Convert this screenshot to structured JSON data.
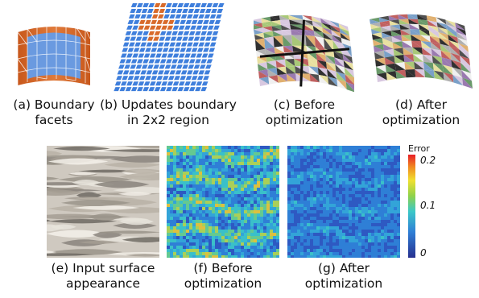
{
  "panels": {
    "a": {
      "line1": "(a) Boundary",
      "line2": "facets"
    },
    "b": {
      "line1": "(b) Updates boundary",
      "line2": "in 2x2 region"
    },
    "c": {
      "line1": "(c) Before",
      "line2": "optimization"
    },
    "d": {
      "line1": "(d) After",
      "line2": "optimization"
    },
    "e": {
      "line1": "(e) Input surface",
      "line2": "appearance"
    },
    "f": {
      "line1": "(f) Before",
      "line2": "optimization"
    },
    "g": {
      "line1": "(g) After",
      "line2": "optimization"
    }
  },
  "colorbar": {
    "title": "Error",
    "ticks": [
      "0.2",
      "0.1",
      "0"
    ]
  },
  "colors": {
    "boundary_orange": "#d86a2a",
    "interior_blue": "#5b8fd6",
    "grid_blue": "#3f7fdc",
    "error_low": "#2a3aa8",
    "error_high": "#e8202a"
  }
}
